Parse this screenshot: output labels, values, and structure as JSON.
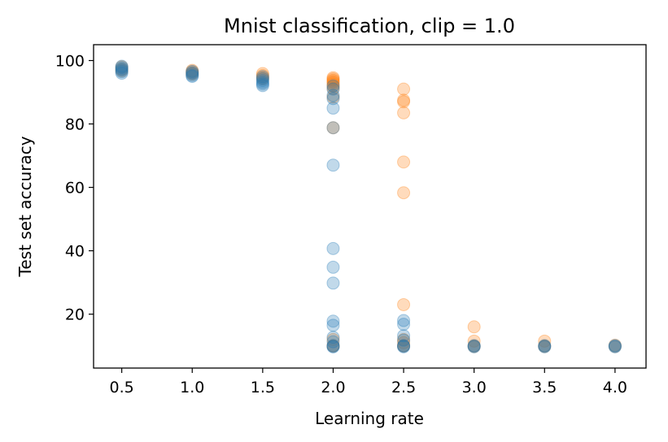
{
  "chart_data": {
    "type": "scatter",
    "title": "Mnist classification, clip = 1.0",
    "xlabel": "Learning rate",
    "ylabel": "Test set accuracy",
    "xlim": [
      0.3,
      4.22
    ],
    "ylim": [
      3,
      105
    ],
    "xticks": [
      0.5,
      1.0,
      1.5,
      2.0,
      2.5,
      3.0,
      3.5,
      4.0
    ],
    "xtick_labels": [
      "0.5",
      "1.0",
      "1.5",
      "2.0",
      "2.5",
      "3.0",
      "3.5",
      "4.0"
    ],
    "yticks": [
      20,
      40,
      60,
      80,
      100
    ],
    "ytick_labels": [
      "20",
      "40",
      "60",
      "80",
      "100"
    ],
    "grid": false,
    "legend": false,
    "marker_alpha": 0.28,
    "series": [
      {
        "color": "#ff7f0e",
        "points": [
          [
            0.5,
            98.0
          ],
          [
            0.5,
            97.3
          ],
          [
            0.5,
            96.8
          ],
          [
            1.0,
            96.9
          ],
          [
            1.0,
            96.5
          ],
          [
            1.0,
            96.1
          ],
          [
            1.0,
            95.7
          ],
          [
            1.5,
            95.9
          ],
          [
            1.5,
            95.3
          ],
          [
            1.5,
            94.7
          ],
          [
            1.5,
            94.2
          ],
          [
            2.0,
            94.6
          ],
          [
            2.0,
            94.2
          ],
          [
            2.0,
            93.8
          ],
          [
            2.0,
            93.4
          ],
          [
            2.0,
            93.0
          ],
          [
            2.0,
            92.5
          ],
          [
            2.0,
            91.9
          ],
          [
            2.0,
            91.2
          ],
          [
            2.0,
            88.5
          ],
          [
            2.0,
            78.8
          ],
          [
            2.0,
            12.0
          ],
          [
            2.0,
            10.0
          ],
          [
            2.0,
            10.0
          ],
          [
            2.5,
            91.0
          ],
          [
            2.5,
            87.5
          ],
          [
            2.5,
            87.0
          ],
          [
            2.5,
            83.5
          ],
          [
            2.5,
            68.0
          ],
          [
            2.5,
            58.3
          ],
          [
            2.5,
            23.0
          ],
          [
            2.5,
            12.0
          ],
          [
            2.5,
            11.0
          ],
          [
            2.5,
            10.0
          ],
          [
            2.5,
            10.0
          ],
          [
            3.0,
            16.0
          ],
          [
            3.0,
            11.5
          ],
          [
            3.0,
            10.0
          ],
          [
            3.0,
            9.8
          ],
          [
            3.5,
            11.5
          ],
          [
            3.5,
            10.0
          ],
          [
            3.5,
            9.8
          ],
          [
            4.0,
            10.2
          ],
          [
            4.0,
            9.8
          ]
        ]
      },
      {
        "color": "#1f77b4",
        "points": [
          [
            0.5,
            98.2
          ],
          [
            0.5,
            97.8
          ],
          [
            0.5,
            97.4
          ],
          [
            0.5,
            97.0
          ],
          [
            0.5,
            96.5
          ],
          [
            0.5,
            96.0
          ],
          [
            1.0,
            96.6
          ],
          [
            1.0,
            96.2
          ],
          [
            1.0,
            95.8
          ],
          [
            1.0,
            95.3
          ],
          [
            1.0,
            95.0
          ],
          [
            1.5,
            94.9
          ],
          [
            1.5,
            94.3
          ],
          [
            1.5,
            93.7
          ],
          [
            1.5,
            93.1
          ],
          [
            1.5,
            92.6
          ],
          [
            1.5,
            92.1
          ],
          [
            2.0,
            92.0
          ],
          [
            2.0,
            91.0
          ],
          [
            2.0,
            89.0
          ],
          [
            2.0,
            88.0
          ],
          [
            2.0,
            85.0
          ],
          [
            2.0,
            78.8
          ],
          [
            2.0,
            67.0
          ],
          [
            2.0,
            40.7
          ],
          [
            2.0,
            34.8
          ],
          [
            2.0,
            29.8
          ],
          [
            2.0,
            17.8
          ],
          [
            2.0,
            16.5
          ],
          [
            2.0,
            12.7
          ],
          [
            2.0,
            11.3
          ],
          [
            2.0,
            10.1
          ],
          [
            2.0,
            9.8
          ],
          [
            2.0,
            9.7
          ],
          [
            2.5,
            18.0
          ],
          [
            2.5,
            16.8
          ],
          [
            2.5,
            13.2
          ],
          [
            2.5,
            11.8
          ],
          [
            2.5,
            10.1
          ],
          [
            2.5,
            9.9
          ],
          [
            2.5,
            9.7
          ],
          [
            3.0,
            10.1
          ],
          [
            3.0,
            9.9
          ],
          [
            3.0,
            9.7
          ],
          [
            3.5,
            10.1
          ],
          [
            3.5,
            9.9
          ],
          [
            3.5,
            9.7
          ],
          [
            4.0,
            10.1
          ],
          [
            4.0,
            9.9
          ],
          [
            4.0,
            9.7
          ]
        ]
      }
    ]
  }
}
